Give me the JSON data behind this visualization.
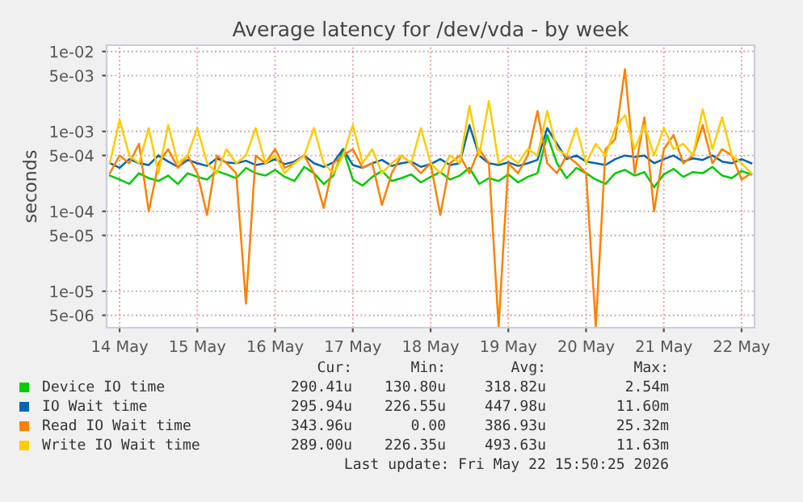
{
  "chart_data": {
    "type": "line",
    "title": "Average latency for /dev/vda - by week",
    "ylabel": "seconds",
    "log": "y",
    "ylim": [
      3.5e-06,
      0.012
    ],
    "yticks": [
      {
        "value": 0.01,
        "label": "1e-02"
      },
      {
        "value": 0.005,
        "label": "5e-03"
      },
      {
        "value": 0.001,
        "label": "1e-03"
      },
      {
        "value": 0.0005,
        "label": "5e-04"
      },
      {
        "value": 0.0001,
        "label": "1e-04"
      },
      {
        "value": 5e-05,
        "label": "5e-05"
      },
      {
        "value": 1e-05,
        "label": "1e-05"
      },
      {
        "value": 5e-06,
        "label": "5e-06"
      }
    ],
    "xlim": [
      "2026-05-14T08:00",
      "2026-05-22T16:00"
    ],
    "xticks": [
      {
        "value": "2026-05-14T12:00",
        "label": "14 May"
      },
      {
        "value": "2026-05-15T12:00",
        "label": "15 May"
      },
      {
        "value": "2026-05-16T12:00",
        "label": "16 May"
      },
      {
        "value": "2026-05-17T12:00",
        "label": "17 May"
      },
      {
        "value": "2026-05-18T12:00",
        "label": "18 May"
      },
      {
        "value": "2026-05-19T12:00",
        "label": "19 May"
      },
      {
        "value": "2026-05-20T12:00",
        "label": "20 May"
      },
      {
        "value": "2026-05-21T12:00",
        "label": "21 May"
      },
      {
        "value": "2026-05-22T12:00",
        "label": "22 May"
      }
    ],
    "grid": true,
    "legend": "bottom",
    "line_style": "solid",
    "marker": "none",
    "x": [
      "2026-05-14T09:00",
      "2026-05-14T12:00",
      "2026-05-14T15:00",
      "2026-05-14T18:00",
      "2026-05-14T21:00",
      "2026-05-15T00:00",
      "2026-05-15T03:00",
      "2026-05-15T06:00",
      "2026-05-15T09:00",
      "2026-05-15T12:00",
      "2026-05-15T15:00",
      "2026-05-15T18:00",
      "2026-05-15T21:00",
      "2026-05-16T00:00",
      "2026-05-16T03:00",
      "2026-05-16T06:00",
      "2026-05-16T09:00",
      "2026-05-16T12:00",
      "2026-05-16T15:00",
      "2026-05-16T18:00",
      "2026-05-16T21:00",
      "2026-05-17T00:00",
      "2026-05-17T03:00",
      "2026-05-17T06:00",
      "2026-05-17T09:00",
      "2026-05-17T12:00",
      "2026-05-17T15:00",
      "2026-05-17T18:00",
      "2026-05-17T21:00",
      "2026-05-18T00:00",
      "2026-05-18T03:00",
      "2026-05-18T06:00",
      "2026-05-18T09:00",
      "2026-05-18T12:00",
      "2026-05-18T15:00",
      "2026-05-18T18:00",
      "2026-05-18T21:00",
      "2026-05-19T00:00",
      "2026-05-19T03:00",
      "2026-05-19T06:00",
      "2026-05-19T09:00",
      "2026-05-19T12:00",
      "2026-05-19T15:00",
      "2026-05-19T18:00",
      "2026-05-19T21:00",
      "2026-05-20T00:00",
      "2026-05-20T03:00",
      "2026-05-20T06:00",
      "2026-05-20T09:00",
      "2026-05-20T12:00",
      "2026-05-20T15:00",
      "2026-05-20T18:00",
      "2026-05-20T21:00",
      "2026-05-21T00:00",
      "2026-05-21T03:00",
      "2026-05-21T06:00",
      "2026-05-21T09:00",
      "2026-05-21T12:00",
      "2026-05-21T15:00",
      "2026-05-21T18:00",
      "2026-05-21T21:00",
      "2026-05-22T00:00",
      "2026-05-22T03:00",
      "2026-05-22T06:00",
      "2026-05-22T09:00",
      "2026-05-22T12:00",
      "2026-05-22T15:00"
    ],
    "series": [
      {
        "name": "Device IO time",
        "color": "#00cc00",
        "values": [
          0.00028,
          0.00025,
          0.00022,
          0.0003,
          0.00026,
          0.00024,
          0.00028,
          0.00022,
          0.0003,
          0.00027,
          0.00025,
          0.00032,
          0.00029,
          0.00026,
          0.00035,
          0.0003,
          0.00028,
          0.00033,
          0.00027,
          0.00024,
          0.00036,
          0.0003,
          0.00022,
          0.00028,
          0.0006,
          0.00025,
          0.00021,
          0.00027,
          0.00032,
          0.00024,
          0.00026,
          0.00029,
          0.00023,
          0.00027,
          0.00031,
          0.00025,
          0.00028,
          0.00035,
          0.00022,
          0.00026,
          0.00024,
          0.00029,
          0.00023,
          0.00027,
          0.0003,
          0.0009,
          0.0004,
          0.00026,
          0.00035,
          0.0003,
          0.00025,
          0.00022,
          0.0003,
          0.00033,
          0.00028,
          0.00031,
          0.0002,
          0.00029,
          0.00034,
          0.00027,
          0.00031,
          0.0003,
          0.00036,
          0.00028,
          0.00026,
          0.00032,
          0.00029
        ]
      },
      {
        "name": "IO Wait time",
        "color": "#0066b3",
        "values": [
          0.0004,
          0.00035,
          0.00045,
          0.0004,
          0.00038,
          0.0005,
          0.00042,
          0.00036,
          0.00044,
          0.0004,
          0.00037,
          0.00046,
          0.00041,
          0.0004,
          0.00043,
          0.00038,
          0.0004,
          0.00045,
          0.00039,
          0.00042,
          0.0005,
          0.0004,
          0.00036,
          0.00041,
          0.0006,
          0.00038,
          0.00035,
          0.0004,
          0.00044,
          0.00037,
          0.0004,
          0.00042,
          0.00036,
          0.00039,
          0.00045,
          0.00038,
          0.0004,
          0.0012,
          0.0005,
          0.0004,
          0.00038,
          0.00041,
          0.00037,
          0.0004,
          0.00044,
          0.0011,
          0.0007,
          0.00045,
          0.0005,
          0.00042,
          0.0004,
          0.00038,
          0.00045,
          0.0005,
          0.00048,
          0.0005,
          0.0004,
          0.00045,
          0.0005,
          0.00042,
          0.00046,
          0.00044,
          0.0005,
          0.00042,
          0.0004,
          0.00045,
          0.0004
        ]
      },
      {
        "name": "Read IO Wait time",
        "color": "#ff8000",
        "values": [
          0.0003,
          0.0005,
          0.0004,
          0.0007,
          0.0001,
          0.0004,
          0.0006,
          0.00035,
          0.0005,
          0.0003,
          9e-05,
          0.0005,
          0.0004,
          0.0003,
          7e-06,
          0.0005,
          0.0004,
          0.0006,
          0.00035,
          0.0004,
          0.0005,
          0.0003,
          0.00011,
          0.0004,
          0.0005,
          0.0006,
          0.00035,
          0.0004,
          0.00012,
          0.0003,
          0.0005,
          0.0004,
          0.0003,
          0.0004,
          9e-05,
          0.0004,
          0.0005,
          0.0003,
          0.0006,
          0.0004,
          3.6e-06,
          0.0004,
          0.0003,
          0.0005,
          0.0018,
          0.0004,
          0.0003,
          0.0005,
          0.0004,
          0.0003,
          3.6e-06,
          0.0006,
          0.0008,
          0.006,
          0.0003,
          0.0015,
          0.0001,
          0.0006,
          0.0009,
          0.0004,
          0.0005,
          0.0012,
          0.0004,
          0.0006,
          0.0005,
          0.00025,
          0.0003
        ]
      },
      {
        "name": "Write IO Wait time",
        "color": "#ffcc00",
        "values": [
          0.0004,
          0.0014,
          0.0005,
          0.0004,
          0.0011,
          0.0003,
          0.0012,
          0.0004,
          0.0005,
          0.0011,
          0.0004,
          0.0003,
          0.0006,
          0.0004,
          0.0005,
          0.0011,
          0.0004,
          0.0005,
          0.0003,
          0.0004,
          0.0005,
          0.0011,
          0.0004,
          0.0003,
          0.0005,
          0.0012,
          0.0004,
          0.0006,
          0.0003,
          0.0004,
          0.0005,
          0.0004,
          0.0011,
          0.0004,
          0.0003,
          0.0005,
          0.0004,
          0.0021,
          0.0005,
          0.0024,
          0.0004,
          0.0005,
          0.0004,
          0.0006,
          0.0005,
          0.0018,
          0.0006,
          0.0005,
          0.0011,
          0.0004,
          0.0007,
          0.0005,
          0.0011,
          0.0016,
          0.0006,
          0.0012,
          0.0005,
          0.0011,
          0.0006,
          0.0007,
          0.0005,
          0.0019,
          0.0006,
          0.0015,
          0.0005,
          0.0004,
          0.0003
        ]
      }
    ],
    "annotations": [
      "Cur:",
      "Min:",
      "Avg:",
      "Max:",
      "290.41u",
      "130.80u",
      "318.82u",
      "2.54m",
      "295.94u",
      "226.55u",
      "447.98u",
      "11.60m",
      "343.96u",
      "0.00",
      "386.93u",
      "25.32m",
      "289.00u",
      "226.35u",
      "493.63u",
      "11.63m",
      "Last update: Fri May 22 15:50:25 2026"
    ]
  }
}
